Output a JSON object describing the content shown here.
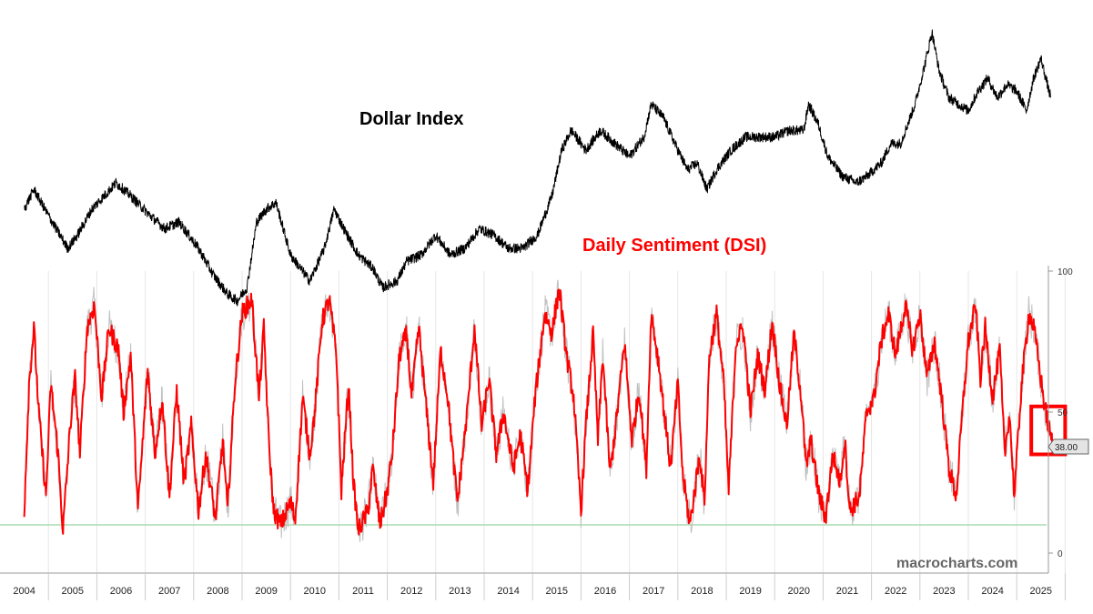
{
  "chart_data": [
    {
      "type": "line",
      "title": "Dollar Index",
      "series": [
        {
          "name": "Dollar Index",
          "color": "#000000",
          "points": [
            [
              2004.0,
              86
            ],
            [
              2004.2,
              89
            ],
            [
              2004.5,
              85
            ],
            [
              2004.9,
              80
            ],
            [
              2005.1,
              82
            ],
            [
              2005.4,
              86
            ],
            [
              2005.9,
              90
            ],
            [
              2006.2,
              88
            ],
            [
              2006.6,
              85
            ],
            [
              2006.9,
              83
            ],
            [
              2007.2,
              84
            ],
            [
              2007.6,
              80
            ],
            [
              2007.9,
              76
            ],
            [
              2008.2,
              73
            ],
            [
              2008.4,
              72
            ],
            [
              2008.6,
              74
            ],
            [
              2008.8,
              84
            ],
            [
              2009.0,
              86
            ],
            [
              2009.2,
              87
            ],
            [
              2009.5,
              79
            ],
            [
              2009.9,
              75
            ],
            [
              2010.2,
              80
            ],
            [
              2010.4,
              86
            ],
            [
              2010.6,
              83
            ],
            [
              2010.9,
              79
            ],
            [
              2011.2,
              77
            ],
            [
              2011.4,
              74
            ],
            [
              2011.7,
              75
            ],
            [
              2011.9,
              78
            ],
            [
              2012.2,
              79
            ],
            [
              2012.5,
              82
            ],
            [
              2012.8,
              79
            ],
            [
              2013.1,
              80
            ],
            [
              2013.4,
              83
            ],
            [
              2013.7,
              82
            ],
            [
              2014.0,
              80
            ],
            [
              2014.3,
              80
            ],
            [
              2014.6,
              82
            ],
            [
              2014.9,
              88
            ],
            [
              2015.1,
              95
            ],
            [
              2015.3,
              98
            ],
            [
              2015.6,
              95
            ],
            [
              2015.9,
              98
            ],
            [
              2016.2,
              96
            ],
            [
              2016.5,
              94
            ],
            [
              2016.8,
              97
            ],
            [
              2016.95,
              102
            ],
            [
              2017.2,
              100
            ],
            [
              2017.5,
              95
            ],
            [
              2017.7,
              92
            ],
            [
              2017.9,
              93
            ],
            [
              2018.1,
              89
            ],
            [
              2018.3,
              92
            ],
            [
              2018.6,
              95
            ],
            [
              2018.9,
              97
            ],
            [
              2019.2,
              97
            ],
            [
              2019.5,
              97
            ],
            [
              2019.8,
              98
            ],
            [
              2020.1,
              98
            ],
            [
              2020.2,
              102
            ],
            [
              2020.4,
              99
            ],
            [
              2020.6,
              94
            ],
            [
              2020.9,
              91
            ],
            [
              2021.2,
              90
            ],
            [
              2021.4,
              91
            ],
            [
              2021.7,
              93
            ],
            [
              2021.9,
              96
            ],
            [
              2022.1,
              96
            ],
            [
              2022.4,
              102
            ],
            [
              2022.6,
              108
            ],
            [
              2022.75,
              113
            ],
            [
              2022.9,
              107
            ],
            [
              2023.1,
              103
            ],
            [
              2023.3,
              102
            ],
            [
              2023.5,
              101
            ],
            [
              2023.7,
              104
            ],
            [
              2023.9,
              106
            ],
            [
              2024.1,
              103
            ],
            [
              2024.3,
              105
            ],
            [
              2024.5,
              104
            ],
            [
              2024.7,
              101
            ],
            [
              2024.85,
              106
            ],
            [
              2025.0,
              109
            ],
            [
              2025.1,
              106
            ],
            [
              2025.2,
              103
            ]
          ]
        }
      ]
    },
    {
      "type": "line",
      "title": "Daily Sentiment (DSI)",
      "ylim": [
        0,
        100
      ],
      "yticks": [
        "0",
        "50",
        "100"
      ],
      "x_labels": [
        "2004",
        "2005",
        "2006",
        "2007",
        "2008",
        "2009",
        "2010",
        "2011",
        "2012",
        "2013",
        "2014",
        "2015",
        "2016",
        "2017",
        "2018",
        "2019",
        "2020",
        "2021",
        "2022",
        "2023",
        "2024",
        "2025"
      ],
      "reference_line": 10,
      "last_value_label": "38.00",
      "series": [
        {
          "name": "Daily Sentiment (DSI)",
          "color": "#ff0000",
          "points": [
            [
              2004.0,
              15
            ],
            [
              2004.1,
              60
            ],
            [
              2004.2,
              80
            ],
            [
              2004.3,
              50
            ],
            [
              2004.45,
              20
            ],
            [
              2004.55,
              60
            ],
            [
              2004.7,
              35
            ],
            [
              2004.8,
              8
            ],
            [
              2004.95,
              45
            ],
            [
              2005.05,
              62
            ],
            [
              2005.15,
              35
            ],
            [
              2005.3,
              80
            ],
            [
              2005.45,
              88
            ],
            [
              2005.6,
              55
            ],
            [
              2005.75,
              80
            ],
            [
              2005.95,
              72
            ],
            [
              2006.05,
              50
            ],
            [
              2006.2,
              70
            ],
            [
              2006.35,
              15
            ],
            [
              2006.55,
              65
            ],
            [
              2006.7,
              35
            ],
            [
              2006.85,
              55
            ],
            [
              2007.0,
              20
            ],
            [
              2007.15,
              58
            ],
            [
              2007.3,
              25
            ],
            [
              2007.45,
              45
            ],
            [
              2007.6,
              15
            ],
            [
              2007.75,
              35
            ],
            [
              2007.95,
              12
            ],
            [
              2008.1,
              40
            ],
            [
              2008.2,
              15
            ],
            [
              2008.35,
              60
            ],
            [
              2008.5,
              85
            ],
            [
              2008.7,
              90
            ],
            [
              2008.85,
              55
            ],
            [
              2008.95,
              80
            ],
            [
              2009.05,
              40
            ],
            [
              2009.15,
              15
            ],
            [
              2009.3,
              10
            ],
            [
              2009.5,
              18
            ],
            [
              2009.6,
              12
            ],
            [
              2009.75,
              55
            ],
            [
              2009.9,
              35
            ],
            [
              2010.0,
              50
            ],
            [
              2010.15,
              82
            ],
            [
              2010.3,
              90
            ],
            [
              2010.45,
              70
            ],
            [
              2010.55,
              22
            ],
            [
              2010.7,
              60
            ],
            [
              2010.8,
              25
            ],
            [
              2010.9,
              8
            ],
            [
              2011.1,
              15
            ],
            [
              2011.2,
              30
            ],
            [
              2011.35,
              10
            ],
            [
              2011.5,
              22
            ],
            [
              2011.6,
              35
            ],
            [
              2011.75,
              70
            ],
            [
              2011.9,
              78
            ],
            [
              2012.0,
              55
            ],
            [
              2012.15,
              80
            ],
            [
              2012.3,
              52
            ],
            [
              2012.45,
              25
            ],
            [
              2012.6,
              72
            ],
            [
              2012.75,
              55
            ],
            [
              2012.85,
              35
            ],
            [
              2012.95,
              18
            ],
            [
              2013.15,
              50
            ],
            [
              2013.3,
              80
            ],
            [
              2013.45,
              45
            ],
            [
              2013.6,
              62
            ],
            [
              2013.75,
              35
            ],
            [
              2013.9,
              50
            ],
            [
              2014.1,
              30
            ],
            [
              2014.25,
              42
            ],
            [
              2014.4,
              22
            ],
            [
              2014.55,
              55
            ],
            [
              2014.75,
              85
            ],
            [
              2014.9,
              78
            ],
            [
              2015.05,
              94
            ],
            [
              2015.2,
              70
            ],
            [
              2015.35,
              55
            ],
            [
              2015.5,
              15
            ],
            [
              2015.6,
              45
            ],
            [
              2015.75,
              78
            ],
            [
              2015.85,
              40
            ],
            [
              2015.95,
              70
            ],
            [
              2016.1,
              28
            ],
            [
              2016.25,
              50
            ],
            [
              2016.4,
              75
            ],
            [
              2016.55,
              40
            ],
            [
              2016.7,
              58
            ],
            [
              2016.85,
              30
            ],
            [
              2016.95,
              85
            ],
            [
              2017.1,
              68
            ],
            [
              2017.25,
              45
            ],
            [
              2017.35,
              30
            ],
            [
              2017.5,
              60
            ],
            [
              2017.6,
              28
            ],
            [
              2017.75,
              10
            ],
            [
              2017.95,
              35
            ],
            [
              2018.05,
              18
            ],
            [
              2018.15,
              70
            ],
            [
              2018.3,
              85
            ],
            [
              2018.45,
              60
            ],
            [
              2018.55,
              22
            ],
            [
              2018.7,
              75
            ],
            [
              2018.85,
              80
            ],
            [
              2019.0,
              50
            ],
            [
              2019.15,
              70
            ],
            [
              2019.3,
              58
            ],
            [
              2019.45,
              82
            ],
            [
              2019.6,
              60
            ],
            [
              2019.75,
              45
            ],
            [
              2019.9,
              78
            ],
            [
              2020.05,
              55
            ],
            [
              2020.15,
              30
            ],
            [
              2020.25,
              40
            ],
            [
              2020.4,
              22
            ],
            [
              2020.55,
              12
            ],
            [
              2020.7,
              35
            ],
            [
              2020.85,
              25
            ],
            [
              2020.95,
              40
            ],
            [
              2021.05,
              15
            ],
            [
              2021.25,
              20
            ],
            [
              2021.4,
              50
            ],
            [
              2021.55,
              55
            ],
            [
              2021.7,
              75
            ],
            [
              2021.85,
              85
            ],
            [
              2022.0,
              70
            ],
            [
              2022.2,
              88
            ],
            [
              2022.35,
              72
            ],
            [
              2022.5,
              85
            ],
            [
              2022.65,
              62
            ],
            [
              2022.8,
              75
            ],
            [
              2022.95,
              55
            ],
            [
              2023.1,
              30
            ],
            [
              2023.25,
              20
            ],
            [
              2023.4,
              55
            ],
            [
              2023.5,
              75
            ],
            [
              2023.65,
              88
            ],
            [
              2023.75,
              62
            ],
            [
              2023.85,
              80
            ],
            [
              2024.0,
              55
            ],
            [
              2024.15,
              72
            ],
            [
              2024.25,
              35
            ],
            [
              2024.35,
              50
            ],
            [
              2024.45,
              20
            ],
            [
              2024.6,
              60
            ],
            [
              2024.75,
              85
            ],
            [
              2024.85,
              80
            ],
            [
              2024.95,
              68
            ],
            [
              2025.05,
              55
            ],
            [
              2025.15,
              45
            ],
            [
              2025.25,
              38
            ]
          ]
        }
      ]
    }
  ],
  "watermark": "macrocharts.com",
  "highlight_box": {
    "color": "#ff0000",
    "x_range": [
      2024.8,
      2025.5
    ],
    "y_range": [
      35,
      52
    ]
  },
  "colors": {
    "dollar": "#000000",
    "dsi": "#ff0000",
    "dsi_shadow": "#c0c0c0",
    "reference": "#a8dcb0",
    "grid": "#e6e6e6"
  }
}
